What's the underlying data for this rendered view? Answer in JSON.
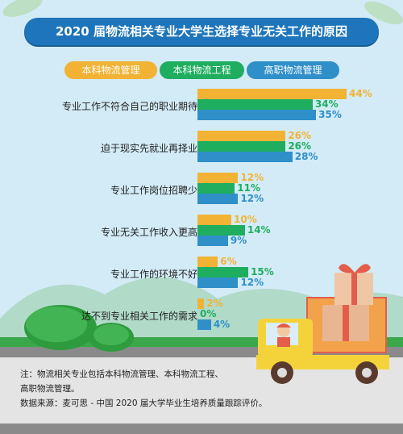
{
  "title": "2020 届物流相关专业大学生选择专业无关工作的原因",
  "colors": {
    "background": "#d3ebf7",
    "title_bg": "#1e75bb",
    "series": [
      "#f2b335",
      "#1fae5f",
      "#2f8fc9"
    ],
    "road": "#8a8a8a",
    "grass": "#3aa84a"
  },
  "legend": [
    {
      "label": "本科物流管理"
    },
    {
      "label": "本科物流工程"
    },
    {
      "label": "高职物流管理"
    }
  ],
  "chart_data": {
    "type": "bar",
    "orientation": "horizontal",
    "title": "2020 届物流相关专业大学生选择专业无关工作的原因",
    "categories": [
      "专业工作不符合自己的职业期待",
      "迫于现实先就业再择业",
      "专业工作岗位招聘少",
      "专业无关工作收入更高",
      "专业工作的环境不好",
      "达不到专业相关工作的需求"
    ],
    "series": [
      {
        "name": "本科物流管理",
        "values": [
          44,
          26,
          12,
          10,
          6,
          2
        ]
      },
      {
        "name": "本科物流工程",
        "values": [
          34,
          26,
          11,
          14,
          15,
          0
        ]
      },
      {
        "name": "高职物流管理",
        "values": [
          35,
          28,
          12,
          9,
          12,
          4
        ]
      }
    ],
    "unit": "%",
    "xlim": [
      0,
      44
    ],
    "grid": false
  },
  "notes": {
    "line1": "注：物流相关专业包括本科物流管理、本科物流工程、",
    "line2": "高职物流管理。",
    "line3": "数据来源：麦可思 - 中国 2020 届大学毕业生培养质量跟踪评价。"
  },
  "icons": [
    "delivery-truck-icon",
    "gift-box-icon",
    "driver-icon",
    "bush-icon",
    "mountain-icon",
    "leaf-icon"
  ]
}
